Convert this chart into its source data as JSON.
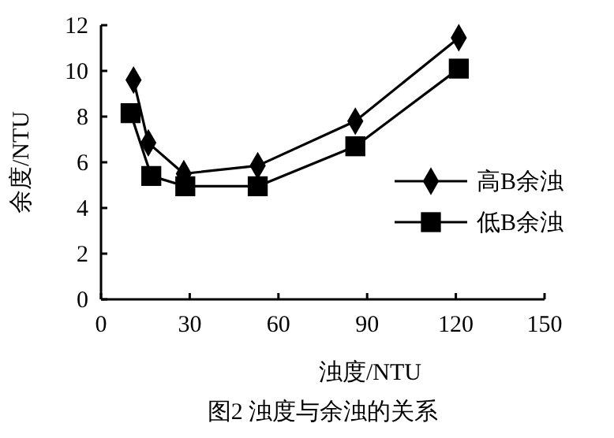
{
  "chart_data": {
    "type": "line",
    "title": "图2 浊度与余浊的关系",
    "xlabel": "浊度/NTU",
    "ylabel": "余度/NTU",
    "xlim": [
      0,
      150
    ],
    "xticks": [
      0,
      30,
      60,
      90,
      120,
      150
    ],
    "ylim": [
      0,
      12
    ],
    "yticks": [
      0,
      2,
      4,
      6,
      8,
      10,
      12
    ],
    "legend": "right",
    "grid": false,
    "series": [
      {
        "name": "高B余浊",
        "color": "#000000",
        "marker": "diamond",
        "x": [
          11,
          16,
          28,
          53,
          86,
          121
        ],
        "values": [
          9.6,
          6.85,
          5.5,
          5.85,
          7.8,
          11.45
        ]
      },
      {
        "name": "低B余浊",
        "color": "#000000",
        "marker": "square",
        "x": [
          10,
          17,
          28.5,
          53,
          86,
          121
        ],
        "values": [
          8.15,
          5.4,
          4.95,
          4.95,
          6.7,
          10.1
        ]
      }
    ]
  }
}
